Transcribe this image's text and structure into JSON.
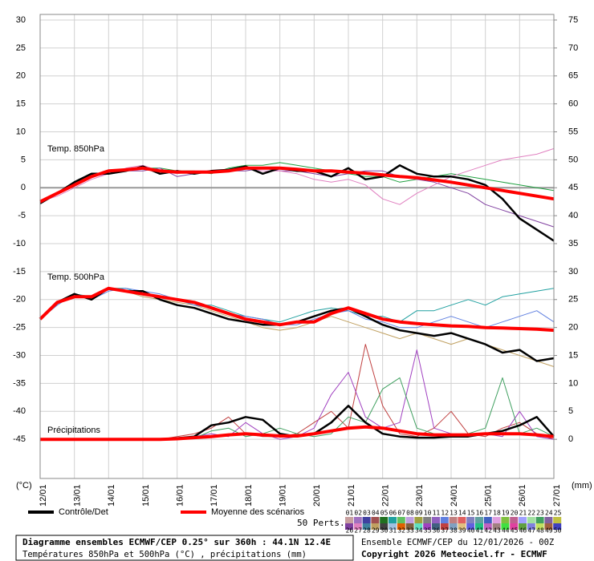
{
  "chart_data": {
    "type": "line",
    "title": "Diagramme ensembles ECMWF/CEP 0.25° sur 360h : 44.1N 12.4E",
    "subtitle": "Températures 850hPa et 500hPa (°C) , précipitations (mm)",
    "run_label": "Ensemble ECMWF/CEP du 12/01/2026 - 00Z",
    "copyright": "Copyright 2026 Meteociel.fr - ECMWF",
    "ylabel": "(°C)",
    "y2label": "(mm)",
    "annotations": [
      "Temp. 850hPa",
      "Temp. 500hPa",
      "Précipitations"
    ],
    "grid": true,
    "hlines": [
      0
    ],
    "xlim": [
      0,
      15
    ],
    "xticks": [
      {
        "value": 0,
        "label": "12/01"
      },
      {
        "value": 1,
        "label": "13/01"
      },
      {
        "value": 2,
        "label": "14/01"
      },
      {
        "value": 3,
        "label": "15/01"
      },
      {
        "value": 4,
        "label": "16/01"
      },
      {
        "value": 5,
        "label": "17/01"
      },
      {
        "value": 6,
        "label": "18/01"
      },
      {
        "value": 7,
        "label": "19/01"
      },
      {
        "value": 8,
        "label": "20/01"
      },
      {
        "value": 9,
        "label": "21/01"
      },
      {
        "value": 10,
        "label": "22/01"
      },
      {
        "value": 11,
        "label": "23/01"
      },
      {
        "value": 12,
        "label": "24/01"
      },
      {
        "value": 13,
        "label": "25/01"
      },
      {
        "value": 14,
        "label": "26/01"
      },
      {
        "value": 15,
        "label": "27/01"
      }
    ],
    "ylim": [
      -52,
      31
    ],
    "yticks": [
      -45,
      -40,
      -35,
      -30,
      -25,
      -20,
      -15,
      -10,
      -5,
      0,
      5,
      10,
      15,
      20,
      25,
      30
    ],
    "y2lim": [
      -7,
      76
    ],
    "y2ticks": [
      0,
      5,
      10,
      15,
      20,
      25,
      30,
      35,
      40,
      45,
      50,
      55,
      60,
      65,
      70,
      75
    ],
    "x": [
      0,
      0.5,
      1,
      1.5,
      2,
      2.5,
      3,
      3.5,
      4,
      4.5,
      5,
      5.5,
      6,
      6.5,
      7,
      7.5,
      8,
      8.5,
      9,
      9.5,
      10,
      10.5,
      11,
      11.5,
      12,
      12.5,
      13,
      13.5,
      14,
      14.5,
      15
    ],
    "series": [
      {
        "color": "#20a040",
        "values": [
          -2.5,
          -1,
          1,
          2,
          3,
          3,
          3.5,
          3.5,
          3,
          3,
          2.5,
          3.5,
          4,
          4,
          4.5,
          4,
          3.5,
          3,
          2.5,
          2,
          2,
          1,
          1.5,
          2,
          2.5,
          2,
          1.5,
          1,
          0.5,
          0,
          -0.5
        ]
      },
      {
        "color": "#8040a0",
        "values": [
          -2.5,
          -1,
          0.5,
          2,
          2.5,
          3,
          3,
          3.5,
          2,
          2.5,
          3,
          3,
          3,
          3.5,
          3,
          3,
          2.5,
          2,
          2.5,
          3,
          3,
          2,
          1.5,
          1,
          0,
          -1,
          -3,
          -4,
          -5,
          -6,
          -7
        ]
      },
      {
        "color": "#e080c0",
        "values": [
          -2.5,
          -1.5,
          0,
          1.5,
          2.5,
          3.5,
          4,
          3,
          2.5,
          3,
          3,
          3,
          3.5,
          3,
          3,
          2.5,
          1.5,
          1,
          1.5,
          0.5,
          -2,
          -3,
          -1,
          0.5,
          2,
          3,
          4,
          5,
          5.5,
          6,
          7
        ]
      },
      {
        "color": "#20a0a0",
        "values": [
          -23.5,
          -21,
          -19,
          -19.5,
          -18,
          -18,
          -19,
          -19.5,
          -20,
          -21,
          -21,
          -22,
          -23,
          -23.5,
          -24,
          -23,
          -22,
          -21.5,
          -22,
          -23,
          -23,
          -24,
          -22,
          -22,
          -21,
          -20,
          -21,
          -19.5,
          -19,
          -18.5,
          -18
        ]
      },
      {
        "color": "#c0a060",
        "values": [
          -23.5,
          -20.5,
          -19.5,
          -19.5,
          -18,
          -18.5,
          -19.5,
          -20,
          -20.5,
          -21,
          -22,
          -23,
          -24,
          -25,
          -25.5,
          -25,
          -24,
          -23,
          -24,
          -25,
          -26,
          -27,
          -26,
          -27,
          -28,
          -27,
          -28,
          -29,
          -30,
          -31,
          -32
        ]
      },
      {
        "color": "#6080e0",
        "values": [
          -23.5,
          -21,
          -19,
          -20,
          -18.5,
          -18,
          -18.5,
          -19,
          -20,
          -21,
          -21.5,
          -22.5,
          -23,
          -23.5,
          -24.5,
          -24.5,
          -23.5,
          -22.5,
          -22,
          -23.5,
          -24,
          -25,
          -25,
          -24,
          -23,
          -24,
          -25,
          -24,
          -23,
          -22,
          -24
        ]
      },
      {
        "color": "#c04040",
        "axis": "y2",
        "values": [
          0,
          0,
          0,
          0,
          0,
          0,
          0,
          0,
          0.5,
          1,
          2,
          4,
          1,
          0.5,
          0.5,
          1,
          3,
          5,
          2,
          17,
          6,
          1,
          0.5,
          2,
          5,
          1,
          0.5,
          2,
          3,
          1,
          0
        ]
      },
      {
        "color": "#a040c0",
        "axis": "y2",
        "values": [
          0,
          0,
          0,
          0,
          0,
          0,
          0,
          0,
          0,
          0.5,
          1,
          0.5,
          3,
          1,
          0,
          0.5,
          2,
          8,
          12,
          4,
          2,
          3,
          16,
          2,
          1,
          0.5,
          1,
          0.5,
          5,
          0.5,
          0
        ]
      },
      {
        "color": "#40a060",
        "axis": "y2",
        "values": [
          0,
          0,
          0,
          0,
          0,
          0,
          0,
          0,
          0,
          0.2,
          1.5,
          2,
          0.5,
          1,
          2,
          1,
          0.5,
          1,
          4,
          3,
          9,
          11,
          2,
          1,
          0.5,
          1,
          2,
          11,
          1,
          2,
          0.5
        ]
      },
      {
        "name": "Contrôle/Det",
        "color": "#000000",
        "values": [
          -2.8,
          -1,
          1,
          2.5,
          2.5,
          3,
          3.8,
          2.5,
          3,
          2.5,
          3,
          3.2,
          3.8,
          2.5,
          3.5,
          3,
          3,
          2,
          3.5,
          1.5,
          2,
          4,
          2.5,
          2,
          2,
          1.5,
          0.5,
          -2,
          -5.5,
          -7.5,
          -9.5
        ]
      },
      {
        "color": "#000000",
        "values": [
          -23.5,
          -20.5,
          -19,
          -20,
          -18,
          -18.5,
          -18.5,
          -20,
          -21,
          -21.5,
          -22.5,
          -23.5,
          -24,
          -24.5,
          -24.5,
          -24,
          -23,
          -22,
          -21.5,
          -23,
          -24.5,
          -25.5,
          -26,
          -26.5,
          -26,
          -27,
          -28,
          -29.5,
          -29,
          -31,
          -30.5
        ]
      },
      {
        "color": "#000000",
        "axis": "y2",
        "values": [
          0,
          0,
          0,
          0,
          0,
          0,
          0,
          0,
          0.2,
          0.5,
          2.5,
          3,
          4,
          3.5,
          1,
          0.5,
          1,
          3,
          6,
          3,
          1,
          0.5,
          0.3,
          0.3,
          0.5,
          0.5,
          1,
          1.5,
          2.5,
          4,
          0.5
        ]
      },
      {
        "name": "Moyenne des scénarios",
        "color": "#ff0000",
        "values": [
          -2.5,
          -1,
          0.5,
          2,
          3,
          3.2,
          3.5,
          3,
          2.8,
          2.8,
          2.8,
          3,
          3.5,
          3.5,
          3.5,
          3.3,
          3,
          3,
          2.8,
          2.6,
          2.3,
          2,
          1.8,
          1.4,
          1,
          0.5,
          0,
          -0.5,
          -1,
          -1.5,
          -2
        ]
      },
      {
        "color": "#ff0000",
        "values": [
          -23.5,
          -20.5,
          -19.5,
          -19.5,
          -18,
          -18.5,
          -19,
          -19.5,
          -20,
          -20.5,
          -21.5,
          -22.5,
          -23.5,
          -24,
          -24.5,
          -24,
          -24,
          -22.5,
          -21.5,
          -22.5,
          -23.5,
          -24,
          -24.3,
          -24.5,
          -24.7,
          -24.8,
          -25,
          -25.1,
          -25.2,
          -25.3,
          -25.5
        ]
      },
      {
        "color": "#ff0000",
        "axis": "y2",
        "values": [
          0,
          0,
          0,
          0,
          0,
          0,
          0,
          0,
          0.1,
          0.3,
          0.5,
          0.8,
          1,
          0.8,
          0.6,
          0.6,
          1,
          1.5,
          2,
          2.2,
          2,
          1.5,
          1,
          0.8,
          0.8,
          0.8,
          1,
          1,
          1,
          0.8,
          0.5
        ]
      }
    ],
    "perturbations": {
      "label": "50 Perts.",
      "ids": [
        "01",
        "02",
        "03",
        "04",
        "05",
        "06",
        "07",
        "08",
        "09",
        "10",
        "11",
        "12",
        "13",
        "14",
        "15",
        "16",
        "17",
        "18",
        "19",
        "20",
        "21",
        "22",
        "23",
        "24",
        "25",
        "26",
        "27",
        "28",
        "29",
        "30",
        "31",
        "32",
        "33",
        "34",
        "35",
        "36",
        "37",
        "38",
        "39",
        "40",
        "41",
        "42",
        "43",
        "44",
        "45",
        "46",
        "47",
        "48",
        "49",
        "50"
      ],
      "colors": [
        "#c8a0a0",
        "#a070c0",
        "#4040a0",
        "#a05050",
        "#207020",
        "#20a0a0",
        "#60c060",
        "#c0a0e0",
        "#a0a040",
        "#808080",
        "#9060c0",
        "#6080e0",
        "#c08080",
        "#e06060",
        "#8080c0",
        "#60a0a0",
        "#4060c0",
        "#e0a0e0",
        "#80c040",
        "#c06090",
        "#a0a0ff",
        "#a0e0a0",
        "#40a060",
        "#8060a0",
        "#c0c040",
        "#8040a0",
        "#e080c0",
        "#4080a0",
        "#c0a060",
        "#404040",
        "#a0c0e0",
        "#e06000",
        "#806040",
        "#60e0c0",
        "#a040c0",
        "#406080",
        "#c04040",
        "#80a0c0",
        "#e0c080",
        "#6060e0",
        "#20c080",
        "#c060c0",
        "#a08080",
        "#40e040",
        "#e040a0",
        "#60a040",
        "#8080e0",
        "#c0e060",
        "#a06040",
        "#4040c0"
      ]
    }
  }
}
